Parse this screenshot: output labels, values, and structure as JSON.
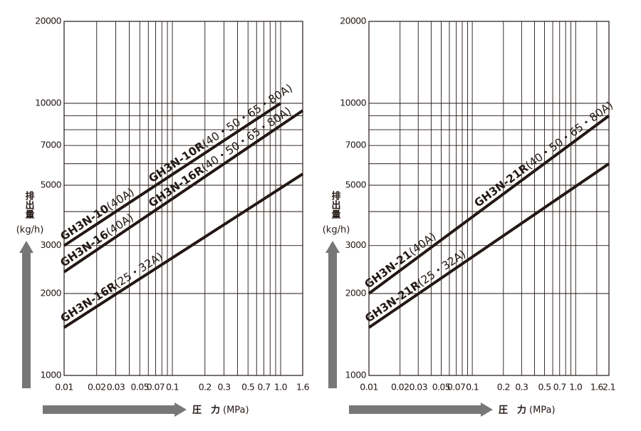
{
  "chart_data": [
    {
      "type": "line",
      "xlog": true,
      "ylog": true,
      "xlim": [
        0.01,
        1.6
      ],
      "ylim": [
        1000,
        20000
      ],
      "xticks": [
        0.01,
        0.02,
        0.03,
        0.05,
        0.07,
        0.1,
        0.2,
        0.3,
        0.5,
        0.7,
        {
          "value": 1,
          "label": "1.0"
        },
        1.6
      ],
      "xminor": [
        0.04,
        0.06,
        0.08,
        0.09,
        0.4,
        0.6,
        0.8,
        0.9
      ],
      "yticks": [
        1000,
        2000,
        3000,
        5000,
        7000,
        10000,
        20000
      ],
      "yminor": [
        4000,
        6000,
        8000,
        9000
      ],
      "ylabel": "排出量",
      "ylabel_unit": "(kg/h)",
      "xlabel": "圧　力",
      "xlabel_unit": "(MPa)",
      "series": [
        {
          "labels": [
            {
              "model": "GH3N-10",
              "size": "(40A)"
            },
            {
              "model": "GH3N-10R",
              "size": "(40・50・65・80A)"
            }
          ],
          "color": "#231815",
          "x": [
            0.01,
            1
          ],
          "values": [
            3000,
            10000
          ]
        },
        {
          "labels": [
            {
              "model": "GH3N-16",
              "size": "(40A)"
            },
            {
              "model": "GH3N-16R",
              "size": "(40・50・65・80A)"
            }
          ],
          "color": "#231815",
          "x": [
            0.01,
            1.6
          ],
          "values": [
            2400,
            9400
          ]
        },
        {
          "labels": [
            {
              "model": "GH3N-16R",
              "size": "(25・32A)"
            }
          ],
          "color": "#231815",
          "x": [
            0.01,
            1.6
          ],
          "values": [
            1500,
            5500
          ]
        }
      ]
    },
    {
      "type": "line",
      "xlog": true,
      "ylog": true,
      "xlim": [
        0.01,
        2.1
      ],
      "ylim": [
        1000,
        20000
      ],
      "xticks": [
        0.01,
        0.02,
        0.03,
        0.05,
        0.07,
        0.1,
        0.2,
        0.3,
        0.5,
        0.7,
        {
          "value": 1,
          "label": "1.0"
        },
        1.6,
        2.1
      ],
      "xminor": [
        0.04,
        0.06,
        0.08,
        0.09,
        0.4,
        0.6,
        0.8,
        0.9
      ],
      "yticks": [
        1000,
        2000,
        3000,
        5000,
        7000,
        10000,
        20000
      ],
      "yminor": [
        4000,
        6000,
        8000,
        9000
      ],
      "ylabel": "排出量",
      "ylabel_unit": "(kg/h)",
      "xlabel": "圧　力",
      "xlabel_unit": "(MPa)",
      "series": [
        {
          "labels": [
            {
              "model": "GH3N-21",
              "size": "(40A)"
            },
            {
              "model": "GH3N-21R",
              "size": "(40・50・65・80A)"
            }
          ],
          "color": "#231815",
          "x": [
            0.01,
            2.1
          ],
          "values": [
            2000,
            9000
          ]
        },
        {
          "labels": [
            {
              "model": "GH3N-21R",
              "size": "(25・32A)"
            }
          ],
          "color": "#231815",
          "x": [
            0.01,
            2.1
          ],
          "values": [
            1500,
            6000
          ]
        }
      ]
    }
  ]
}
